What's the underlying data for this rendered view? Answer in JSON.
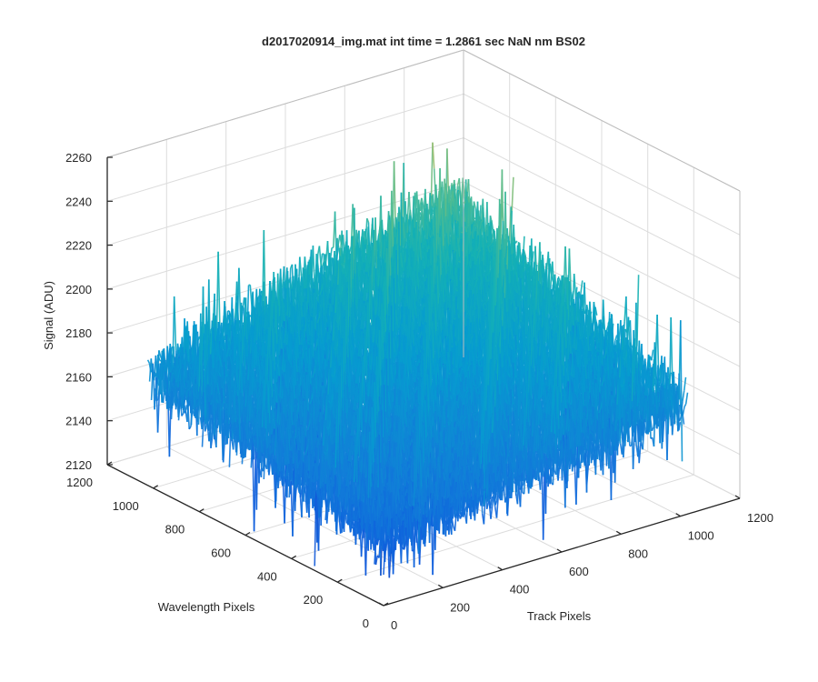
{
  "chart_data": {
    "type": "surface",
    "title": "d2017020914_img.mat int time = 1.2861 sec  NaN nm BS02",
    "xlabel": "Track Pixels",
    "ylabel": "Wavelength Pixels",
    "zlabel": "Signal (ADU)",
    "xlim": [
      0,
      1200
    ],
    "ylim": [
      0,
      1200
    ],
    "zlim": [
      2120,
      2260
    ],
    "xticks": [
      "0",
      "200",
      "400",
      "600",
      "800",
      "1000",
      "1200"
    ],
    "yticks": [
      "0",
      "200",
      "400",
      "600",
      "800",
      "1000",
      "1200"
    ],
    "zticks": [
      "2120",
      "2140",
      "2160",
      "2180",
      "2200",
      "2220",
      "2240",
      "2260"
    ],
    "grid": true,
    "colormap": "parula",
    "surface_extent": {
      "x": [
        0,
        1024
      ],
      "y": [
        0,
        1024
      ]
    },
    "surface_mean_profile": {
      "corner_x0_y0": 2150,
      "corner_x1024_y0": 2170,
      "corner_x0_y1024": 2170,
      "corner_x1024_y1024": 2210,
      "noise_amplitude": 30
    }
  }
}
